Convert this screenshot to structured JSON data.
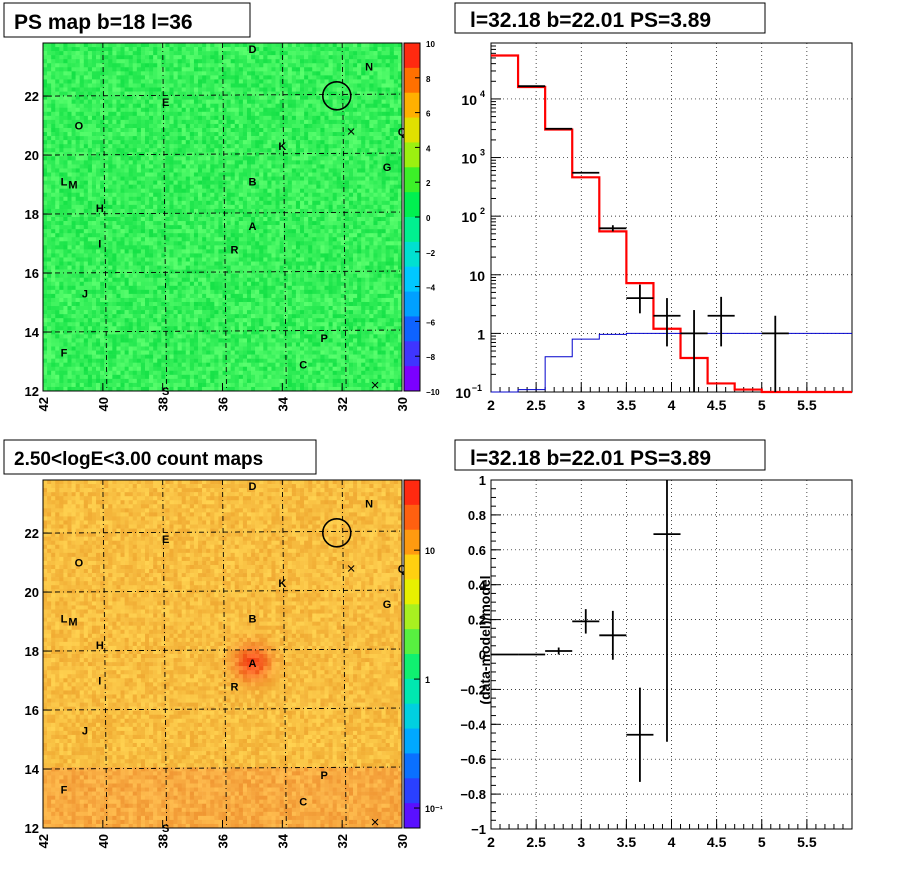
{
  "panels": {
    "ps_map": {
      "title": "PS map b=18 l=36",
      "x_ticks": [
        "42",
        "40",
        "38",
        "36",
        "34",
        "32",
        "30"
      ],
      "y_ticks": [
        "12",
        "14",
        "16",
        "18",
        "20",
        "22"
      ],
      "colorbar_ticks": [
        "10",
        "8",
        "6",
        "4",
        "2",
        "0",
        "−2",
        "−4",
        "−6",
        "−8",
        "−10"
      ],
      "colormap": [
        "#7b00ff",
        "#3f35ff",
        "#0e63ff",
        "#00a0ff",
        "#00c8ff",
        "#00e0d0",
        "#00f090",
        "#00f050",
        "#3cf028",
        "#9cf010",
        "#e0e000",
        "#ffb000",
        "#ff7000",
        "#ff2a10"
      ],
      "background": "#19ee55"
    },
    "count_map": {
      "title": "2.50<logE<3.00 count maps",
      "x_ticks": [
        "42",
        "40",
        "38",
        "36",
        "34",
        "32",
        "30"
      ],
      "y_ticks": [
        "12",
        "14",
        "16",
        "18",
        "20",
        "22"
      ],
      "colorbar_ticks": [
        "10",
        "1",
        "10⁻¹"
      ],
      "background": "#f2a43c",
      "hotspot": "#ff3a10"
    },
    "spectrum": {
      "title": "l=32.18 b=22.01 PS=3.89"
    },
    "residual": {
      "title": "l=32.18 b=22.01 PS=3.89",
      "ylabel": "(data-model)/model"
    }
  },
  "map_labels": [
    {
      "t": "D",
      "l": 35.0,
      "b": 23.6
    },
    {
      "t": "N",
      "l": 31.1,
      "b": 23.0
    },
    {
      "t": "E",
      "l": 37.9,
      "b": 21.8
    },
    {
      "t": "O",
      "l": 40.8,
      "b": 21.0
    },
    {
      "t": "Q",
      "l": 30.0,
      "b": 20.8
    },
    {
      "t": "K",
      "l": 34.0,
      "b": 20.3
    },
    {
      "t": "G",
      "l": 30.5,
      "b": 19.6
    },
    {
      "t": "L",
      "l": 41.3,
      "b": 19.1
    },
    {
      "t": "M",
      "l": 41.0,
      "b": 19.0
    },
    {
      "t": "B",
      "l": 35.0,
      "b": 19.1
    },
    {
      "t": "H",
      "l": 40.1,
      "b": 18.2
    },
    {
      "t": "A",
      "l": 35.0,
      "b": 17.6
    },
    {
      "t": "R",
      "l": 35.6,
      "b": 16.8
    },
    {
      "t": "I",
      "l": 40.1,
      "b": 17.0
    },
    {
      "t": "J",
      "l": 40.6,
      "b": 15.3
    },
    {
      "t": "P",
      "l": 32.6,
      "b": 13.8
    },
    {
      "t": "C",
      "l": 33.3,
      "b": 12.9
    },
    {
      "t": "F",
      "l": 41.3,
      "b": 13.3
    },
    {
      "t": "S",
      "l": 37.9,
      "b": 12.0
    }
  ],
  "chart_data": [
    {
      "type": "heatmap",
      "title": "PS map b=18 l=36",
      "xlim": [
        42.0,
        30.0
      ],
      "ylim": [
        12.0,
        23.8
      ],
      "zlim": [
        -10,
        10
      ],
      "marker_circle": {
        "l": 32.18,
        "b": 22.01
      },
      "cross_markers": [
        {
          "l": 31.7,
          "b": 20.8
        },
        {
          "l": 30.9,
          "b": 12.2
        }
      ]
    },
    {
      "type": "heatmap",
      "title": "2.50<logE<3.00 count maps",
      "xlim": [
        42.0,
        30.0
      ],
      "ylim": [
        12.0,
        23.8
      ],
      "zscale": "log",
      "zlim": [
        0.07,
        35
      ],
      "hotspot": {
        "l": 35.0,
        "b": 17.6,
        "value": 30
      },
      "marker_circle": {
        "l": 32.18,
        "b": 22.01
      },
      "cross_markers": [
        {
          "l": 31.7,
          "b": 20.8
        },
        {
          "l": 30.9,
          "b": 12.2
        }
      ]
    },
    {
      "type": "line",
      "title": "l=32.18 b=22.01 PS=3.89",
      "xlim": [
        2.0,
        6.0
      ],
      "ylim": [
        0.1,
        90000
      ],
      "yscale": "log",
      "x_ticks": [
        2,
        2.5,
        3,
        3.5,
        4,
        4.5,
        5,
        5.5
      ],
      "grid": true,
      "series": [
        {
          "color": "#ff0000",
          "edges": [
            2.0,
            2.3,
            2.6,
            2.9,
            3.2,
            3.5,
            3.8,
            4.1,
            4.4,
            4.7,
            5.0,
            6.0
          ],
          "values": [
            55000,
            16000,
            3000,
            460,
            55,
            7.2,
            1.2,
            0.38,
            0.14,
            0.11,
            0.1
          ]
        },
        {
          "color": "#0000cc",
          "edges": [
            2.0,
            2.3,
            2.6,
            2.9,
            3.2,
            3.5,
            3.8,
            4.1,
            6.0
          ],
          "values": [
            0.1,
            0.11,
            0.4,
            0.8,
            0.96,
            1.0,
            1.0,
            1.0
          ]
        }
      ],
      "points": [
        {
          "x": 2.45,
          "y": 16500,
          "xerr": 0.15,
          "ylo": 16500,
          "yhi": 16500
        },
        {
          "x": 2.75,
          "y": 3100,
          "xerr": 0.15,
          "ylo": 3100,
          "yhi": 3100
        },
        {
          "x": 3.05,
          "y": 550,
          "xerr": 0.15,
          "ylo": 550,
          "yhi": 550
        },
        {
          "x": 3.35,
          "y": 62,
          "xerr": 0.15,
          "ylo": 55,
          "yhi": 70
        },
        {
          "x": 3.65,
          "y": 4.0,
          "xerr": 0.15,
          "ylo": 2.2,
          "yhi": 6.8
        },
        {
          "x": 3.95,
          "y": 2.0,
          "xerr": 0.15,
          "ylo": 0.6,
          "yhi": 4.0
        },
        {
          "x": 4.25,
          "y": 1.0,
          "xerr": 0.15,
          "ylo": 0.1,
          "yhi": 2.5
        },
        {
          "x": 4.55,
          "y": 2.0,
          "xerr": 0.15,
          "ylo": 0.6,
          "yhi": 4.2
        },
        {
          "x": 5.15,
          "y": 1.0,
          "xerr": 0.15,
          "ylo": 0.1,
          "yhi": 2.0
        }
      ]
    },
    {
      "type": "scatter",
      "title": "l=32.18 b=22.01 PS=3.89",
      "ylabel": "(data-model)/model",
      "xlim": [
        2.0,
        6.0
      ],
      "ylim": [
        -1.0,
        1.0
      ],
      "x_ticks": [
        2,
        2.5,
        3,
        3.5,
        4,
        4.5,
        5,
        5.5
      ],
      "y_ticks": [
        -1,
        -0.8,
        -0.6,
        -0.4,
        -0.2,
        0,
        0.2,
        0.4,
        0.6,
        0.8,
        1
      ],
      "grid": true,
      "points": [
        {
          "x": 2.15,
          "y": 0.0,
          "xerr": 0.15,
          "ylo": 0.0,
          "yhi": 0.0
        },
        {
          "x": 2.45,
          "y": 0.0,
          "xerr": 0.15,
          "ylo": 0.0,
          "yhi": 0.0
        },
        {
          "x": 2.75,
          "y": 0.02,
          "xerr": 0.15,
          "ylo": 0.0,
          "yhi": 0.04
        },
        {
          "x": 3.05,
          "y": 0.19,
          "xerr": 0.15,
          "ylo": 0.12,
          "yhi": 0.26
        },
        {
          "x": 3.35,
          "y": 0.11,
          "xerr": 0.15,
          "ylo": -0.03,
          "yhi": 0.25
        },
        {
          "x": 3.65,
          "y": -0.46,
          "xerr": 0.15,
          "ylo": -0.73,
          "yhi": -0.19
        },
        {
          "x": 3.95,
          "y": 0.69,
          "xerr": 0.15,
          "ylo": -0.5,
          "yhi": 1.0
        }
      ]
    }
  ]
}
